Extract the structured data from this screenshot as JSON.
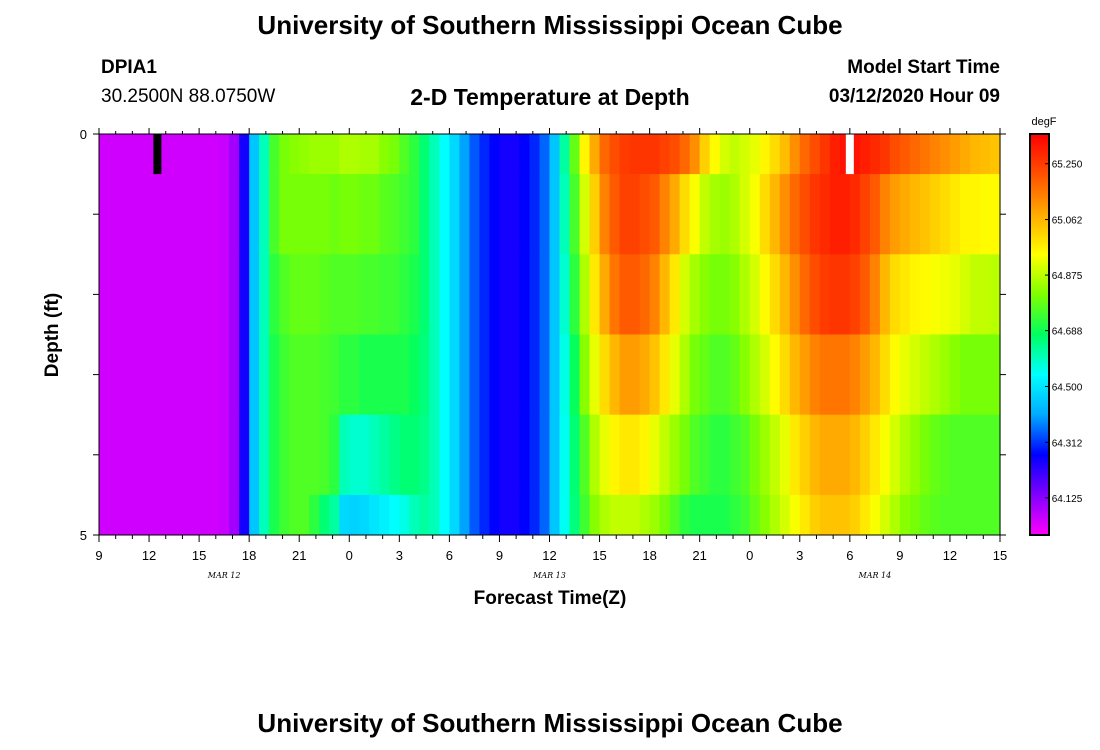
{
  "header": {
    "title": "University of Southern Mississippi Ocean Cube",
    "station_id": "DPIA1",
    "coordinates": "30.2500N 88.0750W",
    "plot_title": "2-D Temperature at Depth",
    "model_start_label": "Model Start Time",
    "model_start_value": "03/12/2020 Hour 09"
  },
  "footer": {
    "title": "University of Southern Mississippi Ocean Cube"
  },
  "chart_data": {
    "type": "heatmap",
    "xlabel": "Forecast Time(Z)",
    "ylabel": "Depth (ft)",
    "x_hours_range": [
      0,
      54
    ],
    "x_tick_labels": [
      "9",
      "12",
      "15",
      "18",
      "21",
      "0",
      "3",
      "6",
      "9",
      "12",
      "15",
      "18",
      "21",
      "0",
      "3",
      "6",
      "9",
      "12",
      "15"
    ],
    "date_labels": [
      {
        "label": "MAR 12",
        "hour": 7.5
      },
      {
        "label": "MAR 13",
        "hour": 27
      },
      {
        "label": "MAR 14",
        "hour": 46.5
      }
    ],
    "y_range": [
      0,
      5
    ],
    "y_tick_labels": [
      "0",
      "5"
    ],
    "depth_bins": [
      0,
      0.5,
      1.5,
      2.5,
      3.5,
      4.5,
      5
    ],
    "colorbar": {
      "unit": "degF",
      "ticks": [
        64.125,
        64.312,
        64.5,
        64.688,
        64.875,
        65.062,
        65.25
      ],
      "tick_labels": [
        "64.125",
        "64.312",
        "64.500",
        "64.688",
        "64.875",
        "65.062",
        "65.250"
      ],
      "range": [
        64.0,
        65.35
      ],
      "stops": [
        "#ff00ff",
        "#8000ff",
        "#0000ff",
        "#00aaff",
        "#00ffff",
        "#00ff60",
        "#7fff00",
        "#ffff00",
        "#ffaa00",
        "#ff5000",
        "#ff0000"
      ]
    },
    "markers": [
      {
        "hour": 3.5,
        "color": "#000000"
      },
      {
        "hour": 45,
        "color": "#ffffff"
      }
    ],
    "rows": [
      [
        64.05,
        64.05,
        64.05,
        64.05,
        64.05,
        64.05,
        64.05,
        64.05,
        64.05,
        64.05,
        64.05,
        64.05,
        64.06,
        64.1,
        64.25,
        64.45,
        64.6,
        64.75,
        64.8,
        64.82,
        64.83,
        64.84,
        64.84,
        64.84,
        64.86,
        64.86,
        64.85,
        64.85,
        64.82,
        64.8,
        64.76,
        64.72,
        64.66,
        64.6,
        64.54,
        64.48,
        64.4,
        64.34,
        64.3,
        64.27,
        64.25,
        64.25,
        64.27,
        64.3,
        64.35,
        64.45,
        64.62,
        64.78,
        64.96,
        65.08,
        65.18,
        65.22,
        65.25,
        65.26,
        65.26,
        65.26,
        65.24,
        65.22,
        65.18,
        65.12,
        65.02,
        64.95,
        64.9,
        64.88,
        64.9,
        64.92,
        64.96,
        65.0,
        65.05,
        65.12,
        65.18,
        65.22,
        65.26,
        65.3,
        65.32,
        65.32,
        65.3,
        65.28,
        65.26,
        65.22,
        65.2,
        65.18,
        65.16,
        65.14,
        65.12,
        65.1,
        65.08,
        65.06,
        65.05,
        65.04
      ],
      [
        64.05,
        64.05,
        64.05,
        64.05,
        64.05,
        64.05,
        64.05,
        64.05,
        64.05,
        64.05,
        64.05,
        64.05,
        64.06,
        64.1,
        64.25,
        64.45,
        64.6,
        64.75,
        64.8,
        64.8,
        64.8,
        64.8,
        64.8,
        64.79,
        64.8,
        64.8,
        64.79,
        64.79,
        64.77,
        64.76,
        64.74,
        64.72,
        64.66,
        64.6,
        64.54,
        64.48,
        64.4,
        64.34,
        64.3,
        64.27,
        64.25,
        64.25,
        64.27,
        64.3,
        64.35,
        64.45,
        64.6,
        64.75,
        64.9,
        65.02,
        65.14,
        65.2,
        65.24,
        65.24,
        65.22,
        65.2,
        65.14,
        65.08,
        65.0,
        64.94,
        64.88,
        64.85,
        64.84,
        64.86,
        64.9,
        64.94,
        65.0,
        65.06,
        65.12,
        65.18,
        65.22,
        65.26,
        65.28,
        65.3,
        65.3,
        65.28,
        65.24,
        65.2,
        65.14,
        65.1,
        65.08,
        65.06,
        65.04,
        65.02,
        65.0,
        64.98,
        64.96,
        64.96,
        64.95,
        64.95
      ],
      [
        64.05,
        64.05,
        64.05,
        64.05,
        64.05,
        64.05,
        64.05,
        64.05,
        64.05,
        64.05,
        64.05,
        64.05,
        64.06,
        64.1,
        64.25,
        64.45,
        64.6,
        64.72,
        64.76,
        64.78,
        64.78,
        64.78,
        64.77,
        64.76,
        64.76,
        64.76,
        64.75,
        64.75,
        64.74,
        64.74,
        64.72,
        64.7,
        64.66,
        64.6,
        64.54,
        64.48,
        64.4,
        64.34,
        64.3,
        64.27,
        64.25,
        64.25,
        64.27,
        64.3,
        64.35,
        64.45,
        64.58,
        64.72,
        64.86,
        64.98,
        65.08,
        65.16,
        65.2,
        65.2,
        65.18,
        65.14,
        65.06,
        64.98,
        64.9,
        64.85,
        64.82,
        64.8,
        64.8,
        64.82,
        64.86,
        64.9,
        64.95,
        65.0,
        65.06,
        65.12,
        65.18,
        65.22,
        65.25,
        65.26,
        65.26,
        65.24,
        65.2,
        65.14,
        65.06,
        65.0,
        64.98,
        64.96,
        64.95,
        64.94,
        64.93,
        64.92,
        64.9,
        64.88,
        64.88,
        64.87
      ],
      [
        64.05,
        64.05,
        64.05,
        64.05,
        64.05,
        64.05,
        64.05,
        64.05,
        64.05,
        64.05,
        64.05,
        64.05,
        64.06,
        64.1,
        64.25,
        64.45,
        64.6,
        64.7,
        64.74,
        64.76,
        64.76,
        64.76,
        64.75,
        64.74,
        64.72,
        64.72,
        64.7,
        64.7,
        64.7,
        64.7,
        64.7,
        64.68,
        64.65,
        64.6,
        64.54,
        64.48,
        64.4,
        64.34,
        64.3,
        64.27,
        64.25,
        64.25,
        64.27,
        64.3,
        64.35,
        64.45,
        64.56,
        64.68,
        64.82,
        64.92,
        65.0,
        65.06,
        65.1,
        65.1,
        65.08,
        65.04,
        64.98,
        64.92,
        64.86,
        64.8,
        64.78,
        64.76,
        64.76,
        64.78,
        64.82,
        64.86,
        64.9,
        64.95,
        65.0,
        65.06,
        65.1,
        65.14,
        65.16,
        65.16,
        65.16,
        65.14,
        65.1,
        65.06,
        65.0,
        64.95,
        64.92,
        64.9,
        64.88,
        64.86,
        64.84,
        64.82,
        64.8,
        64.8,
        64.8,
        64.8
      ],
      [
        64.05,
        64.05,
        64.05,
        64.05,
        64.05,
        64.05,
        64.05,
        64.05,
        64.05,
        64.05,
        64.05,
        64.05,
        64.06,
        64.1,
        64.25,
        64.45,
        64.6,
        64.7,
        64.74,
        64.76,
        64.76,
        64.76,
        64.75,
        64.72,
        64.6,
        64.58,
        64.58,
        64.6,
        64.62,
        64.64,
        64.66,
        64.66,
        64.64,
        64.6,
        64.54,
        64.48,
        64.4,
        64.34,
        64.3,
        64.27,
        64.25,
        64.25,
        64.27,
        64.3,
        64.35,
        64.45,
        64.55,
        64.66,
        64.76,
        64.86,
        64.92,
        64.96,
        64.98,
        64.98,
        64.96,
        64.92,
        64.88,
        64.84,
        64.8,
        64.76,
        64.74,
        64.72,
        64.72,
        64.74,
        64.76,
        64.8,
        64.84,
        64.88,
        64.92,
        64.98,
        65.02,
        65.06,
        65.08,
        65.08,
        65.08,
        65.06,
        65.02,
        64.98,
        64.94,
        64.9,
        64.86,
        64.83,
        64.8,
        64.78,
        64.77,
        64.76,
        64.76,
        64.76,
        64.76,
        64.76
      ],
      [
        64.05,
        64.05,
        64.05,
        64.05,
        64.05,
        64.05,
        64.05,
        64.05,
        64.05,
        64.05,
        64.05,
        64.05,
        64.06,
        64.1,
        64.25,
        64.45,
        64.6,
        64.7,
        64.74,
        64.76,
        64.76,
        64.72,
        64.66,
        64.62,
        64.48,
        64.47,
        64.48,
        64.5,
        64.52,
        64.54,
        64.56,
        64.6,
        64.62,
        64.6,
        64.54,
        64.48,
        64.4,
        64.34,
        64.3,
        64.27,
        64.25,
        64.25,
        64.27,
        64.3,
        64.35,
        64.45,
        64.55,
        64.65,
        64.74,
        64.82,
        64.86,
        64.88,
        64.88,
        64.88,
        64.86,
        64.84,
        64.8,
        64.76,
        64.72,
        64.7,
        64.7,
        64.7,
        64.7,
        64.72,
        64.74,
        64.78,
        64.82,
        64.86,
        64.9,
        64.94,
        64.98,
        65.02,
        65.04,
        65.04,
        65.04,
        65.02,
        64.98,
        64.94,
        64.9,
        64.86,
        64.82,
        64.8,
        64.78,
        64.77,
        64.76,
        64.76,
        64.76,
        64.76,
        64.76,
        64.76
      ]
    ]
  }
}
